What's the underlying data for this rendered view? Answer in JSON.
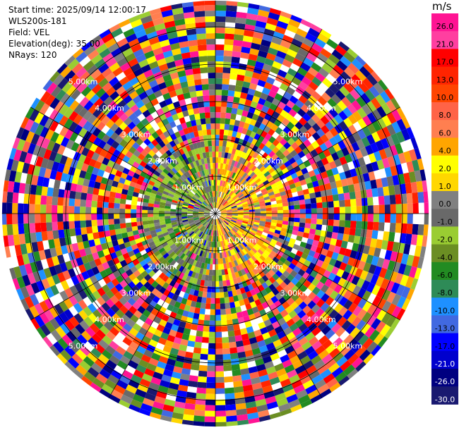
{
  "info": {
    "start_time": "Start time: 2025/09/14 12:00:17",
    "site": "WLS200s-181",
    "field": "Field: VEL",
    "elevation": "Elevation(deg): 35.00",
    "nrays": "NRays: 120"
  },
  "colorbar": {
    "unit": "m/s",
    "bins": [
      {
        "label": "26.0",
        "color": "#ff1493"
      },
      {
        "label": "21.0",
        "color": "#ff3fa0"
      },
      {
        "label": "17.0",
        "color": "#ff0000"
      },
      {
        "label": "13.0",
        "color": "#ff2400"
      },
      {
        "label": "10.0",
        "color": "#ff4500"
      },
      {
        "label": "8.0",
        "color": "#ff6347"
      },
      {
        "label": "6.0",
        "color": "#ff7f50"
      },
      {
        "label": "4.0",
        "color": "#ffa500"
      },
      {
        "label": "2.0",
        "color": "#ffff00"
      },
      {
        "label": "1.0",
        "color": "#ffd700"
      },
      {
        "label": "0.0",
        "color": "#808080"
      },
      {
        "label": "-1.0",
        "color": "#696969"
      },
      {
        "label": "-2.0",
        "color": "#9acd32"
      },
      {
        "label": "-4.0",
        "color": "#6b8e23"
      },
      {
        "label": "-6.0",
        "color": "#228b22"
      },
      {
        "label": "-8.0",
        "color": "#2e8b57"
      },
      {
        "label": "-10.0",
        "color": "#1e90ff"
      },
      {
        "label": "-13.0",
        "color": "#4169e1"
      },
      {
        "label": "-17.0",
        "color": "#0000ff"
      },
      {
        "label": "-21.0",
        "color": "#0000cd"
      },
      {
        "label": "-26.0",
        "color": "#000080"
      },
      {
        "label": "-30.0",
        "color": "#191970"
      }
    ]
  },
  "chart_data": {
    "type": "heatmap",
    "projection": "polar-ppi",
    "field": "VEL",
    "units": "m/s",
    "n_rays": 120,
    "range_rings_km": [
      1.0,
      2.0,
      3.0,
      4.0,
      5.0
    ],
    "range_ring_labels": [
      "1.00km",
      "2.00km",
      "3.00km",
      "4.00km",
      "5.00km"
    ],
    "max_range_km": 5.7,
    "radial_spokes_deg": [
      0,
      30,
      60,
      90,
      120,
      150,
      180,
      210,
      240,
      270,
      300,
      330
    ],
    "colorbar_min": -30.0,
    "colorbar_max": 26.0,
    "pattern": {
      "inner_radius_km": 2.0,
      "west_sector": "greens and greys (negative velocities)",
      "east_sector": "yellows and oranges (positive velocities)",
      "outer": "noisy mixed colors across full scale"
    }
  }
}
